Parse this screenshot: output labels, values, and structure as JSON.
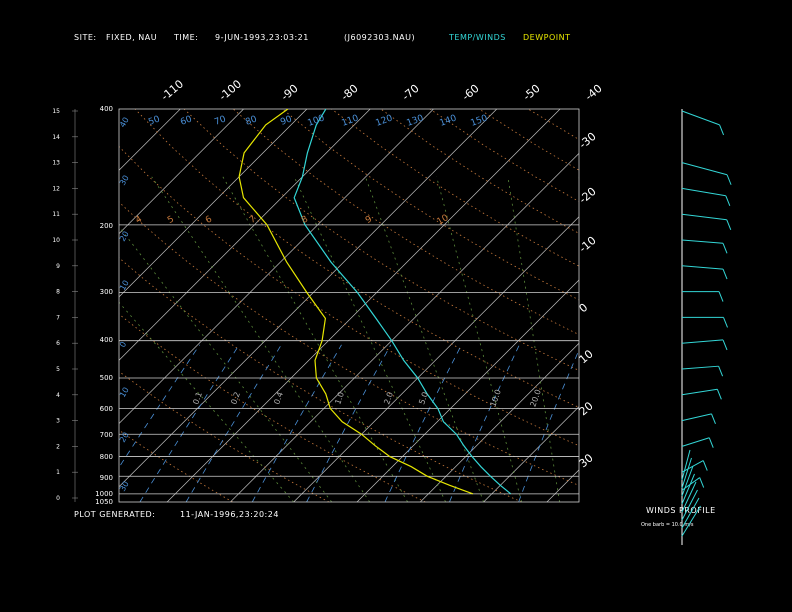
{
  "header": {
    "site_label": "SITE:",
    "site_value": "FIXED, NAU",
    "time_label": "TIME:",
    "time_value": "9-JUN-1993,23:03:21",
    "file_id": "(J6092303.NAU)",
    "legend_temp": "TEMP/WINDS",
    "legend_dew": "DEWPOINT"
  },
  "footer": {
    "generated_label": "PLOT GENERATED:",
    "generated_value": "11-JAN-1996,23:20:24"
  },
  "winds_panel": {
    "title": "WINDS PROFILE",
    "caption": "One barb = 10.0 m/s"
  },
  "colors": {
    "background": "#000000",
    "temperature": "#33d6d6",
    "dewpoint": "#e6e600",
    "isotherm": "#c0c0c0",
    "dry_adiabat": "#c87a3c",
    "moist_adiabat": "#5a8a3a",
    "mixing_ratio": "#4a8fd6",
    "winds": "#33d6d6"
  },
  "chart_data": {
    "type": "skew-t",
    "pressure_levels_hpa": [
      "400",
      "200",
      "300",
      "400",
      "500",
      "600",
      "700",
      "800",
      "900",
      "1000",
      "1050"
    ],
    "height_ticks_km": [
      "15",
      "14",
      "13",
      "12",
      "11",
      "10",
      "9",
      "8",
      "7",
      "6",
      "5",
      "4",
      "3",
      "2",
      "1",
      "0"
    ],
    "temperature_ticks_top": [
      "-110",
      "-100",
      "-90",
      "-80",
      "-70",
      "-60",
      "-50",
      "-40"
    ],
    "temperature_ticks_right": [
      "-30",
      "-20",
      "-10",
      "0",
      "10",
      "20",
      "30"
    ],
    "theta_labels_top": [
      "50",
      "60",
      "70",
      "80",
      "90",
      "100",
      "110",
      "120",
      "130",
      "140",
      "150"
    ],
    "theta_labels_mid": [
      "4",
      "5",
      "6",
      "7",
      "8",
      "9",
      "10"
    ],
    "mixing_ratio_labels": [
      "0.1",
      "0.2",
      "0.4",
      "1.0",
      "2.0",
      "5.0",
      "10.0",
      "20.0"
    ],
    "left_side_labels": [
      "40",
      "30",
      "20",
      "10",
      "0",
      "10",
      "20",
      "30",
      "40"
    ],
    "temperature_profile": [
      {
        "p": 1000,
        "t": 23
      },
      {
        "p": 950,
        "t": 20
      },
      {
        "p": 900,
        "t": 17
      },
      {
        "p": 850,
        "t": 14
      },
      {
        "p": 800,
        "t": 11
      },
      {
        "p": 750,
        "t": 8
      },
      {
        "p": 700,
        "t": 5
      },
      {
        "p": 650,
        "t": 1
      },
      {
        "p": 600,
        "t": -2
      },
      {
        "p": 550,
        "t": -6
      },
      {
        "p": 500,
        "t": -10
      },
      {
        "p": 450,
        "t": -15
      },
      {
        "p": 400,
        "t": -20
      },
      {
        "p": 350,
        "t": -26
      },
      {
        "p": 300,
        "t": -33
      },
      {
        "p": 250,
        "t": -42
      },
      {
        "p": 200,
        "t": -52
      },
      {
        "p": 170,
        "t": -58
      },
      {
        "p": 150,
        "t": -60
      },
      {
        "p": 130,
        "t": -63
      },
      {
        "p": 110,
        "t": -66
      },
      {
        "p": 100,
        "t": -67
      }
    ],
    "dewpoint_profile": [
      {
        "p": 1000,
        "t": 17
      },
      {
        "p": 950,
        "t": 12
      },
      {
        "p": 900,
        "t": 7
      },
      {
        "p": 850,
        "t": 3
      },
      {
        "p": 800,
        "t": -2
      },
      {
        "p": 750,
        "t": -6
      },
      {
        "p": 700,
        "t": -10
      },
      {
        "p": 650,
        "t": -15
      },
      {
        "p": 600,
        "t": -19
      },
      {
        "p": 550,
        "t": -22
      },
      {
        "p": 500,
        "t": -26
      },
      {
        "p": 450,
        "t": -29
      },
      {
        "p": 400,
        "t": -31
      },
      {
        "p": 350,
        "t": -34
      },
      {
        "p": 300,
        "t": -41
      },
      {
        "p": 250,
        "t": -49
      },
      {
        "p": 200,
        "t": -58
      },
      {
        "p": 170,
        "t": -66
      },
      {
        "p": 150,
        "t": -70
      },
      {
        "p": 130,
        "t": -73
      },
      {
        "p": 110,
        "t": -74
      },
      {
        "p": 100,
        "t": -73
      }
    ],
    "winds": [
      {
        "height_km": 15.0,
        "speed": 20,
        "dir": 310
      },
      {
        "height_km": 13.0,
        "speed": 25,
        "dir": 300
      },
      {
        "height_km": 12.0,
        "speed": 20,
        "dir": 290
      },
      {
        "height_km": 11.0,
        "speed": 20,
        "dir": 285
      },
      {
        "height_km": 10.0,
        "speed": 15,
        "dir": 280
      },
      {
        "height_km": 9.0,
        "speed": 15,
        "dir": 280
      },
      {
        "height_km": 8.0,
        "speed": 10,
        "dir": 270
      },
      {
        "height_km": 7.0,
        "speed": 15,
        "dir": 270
      },
      {
        "height_km": 6.0,
        "speed": 15,
        "dir": 260
      },
      {
        "height_km": 5.0,
        "speed": 10,
        "dir": 260
      },
      {
        "height_km": 4.0,
        "speed": 10,
        "dir": 250
      },
      {
        "height_km": 3.0,
        "speed": 5,
        "dir": 240
      },
      {
        "height_km": 2.0,
        "speed": 5,
        "dir": 230
      },
      {
        "height_km": 1.0,
        "speed": 5,
        "dir": 210
      },
      {
        "height_km": 0.3,
        "speed": 5,
        "dir": 200
      }
    ]
  }
}
